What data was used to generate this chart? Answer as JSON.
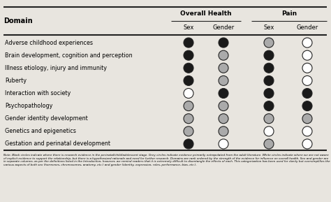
{
  "title_overall": "Overall Health",
  "title_pain": "Pain",
  "col_headers": [
    "Sex",
    "Gender",
    "Sex",
    "Gender"
  ],
  "domain_label": "Domain",
  "rows": [
    "Adverse childhood experiences",
    "Brain development, cognition and perception",
    "Illness etiology, injury and immunity",
    "Puberty",
    "Interaction with society",
    "Psychopathology",
    "Gender identity development",
    "Genetics and epigenetics",
    "Gestation and perinatal development"
  ],
  "circles": [
    [
      "B",
      "B",
      "G",
      "W"
    ],
    [
      "B",
      "G",
      "B",
      "W"
    ],
    [
      "B",
      "G",
      "B",
      "W"
    ],
    [
      "B",
      "G",
      "B",
      "W"
    ],
    [
      "W",
      "B",
      "B",
      "B"
    ],
    [
      "G",
      "G",
      "B",
      "B"
    ],
    [
      "G",
      "G",
      "G",
      "G"
    ],
    [
      "G",
      "G",
      "W",
      "W"
    ],
    [
      "B",
      "W",
      "G",
      "W"
    ]
  ],
  "note_text": "Note. Black circles indicate where there is research evidence in the perinatal/child/adolescent stage. Grey circles indicate evidence primarily extrapolated from the adult literature. White circles indicate where we are not aware of explicit evidence to support the relationship, but there is a hypothesized rationale and need for further research. Domains are rank ordered by the strength of the evidence for influence on overall health. Sex and gender are in separate columns, as per the definitions listed in the Introduction, however, we remind readers that it is extremely difficult to disentangle the effects of each. This categorization has been used for clarity but oversimplifies the various aspects of both sex (hormones, chromosomes, anatomy, etc.) and gender (identity, expression, roles, performance, bias, etc.).",
  "black_color": "#1a1a1a",
  "grey_color": "#aaaaaa",
  "white_color": "#ffffff",
  "bg_color": "#e8e5df",
  "line_color": "#222222"
}
